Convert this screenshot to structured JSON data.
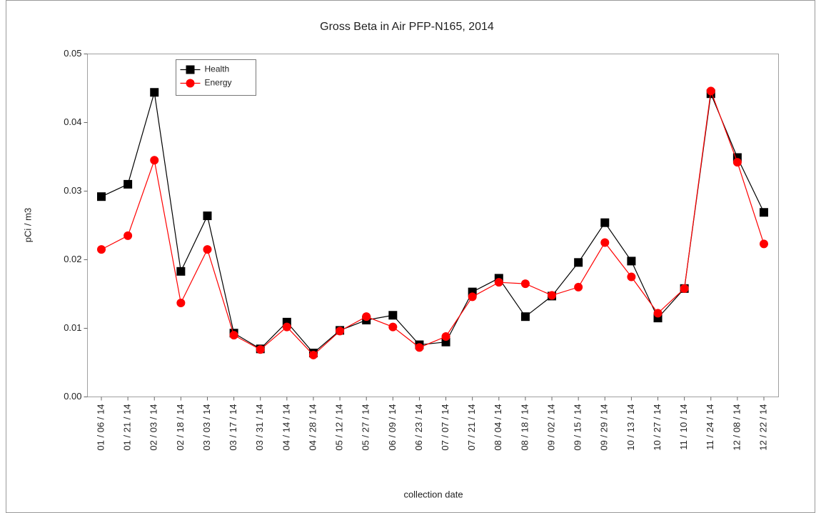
{
  "chart_data": {
    "type": "line",
    "title": "Gross Beta in Air PFP-N165, 2014",
    "x_label": "collection date",
    "y_label": "pCi / m3",
    "categories": [
      "01 / 06 / 14",
      "01 / 21 / 14",
      "02 / 03 / 14",
      "02 / 18 / 14",
      "03 / 03 / 14",
      "03 / 17 / 14",
      "03 / 31 / 14",
      "04 / 14 / 14",
      "04 / 28 / 14",
      "05 / 12 / 14",
      "05 / 27 / 14",
      "06 / 09 / 14",
      "06 / 23 / 14",
      "07 / 07 / 14",
      "07 / 21 / 14",
      "08 / 04 / 14",
      "08 / 18 / 14",
      "09 / 02 / 14",
      "09 / 15 / 14",
      "09 / 29 / 14",
      "10 / 13 / 14",
      "10 / 27 / 14",
      "11 / 10 / 14",
      "11 / 24 / 14",
      "12 / 08 / 14",
      "12 / 22 / 14"
    ],
    "series": [
      {
        "name": "Health",
        "color": "#000000",
        "marker": "square",
        "values": [
          0.0292,
          0.031,
          0.0444,
          0.0183,
          0.0264,
          0.0093,
          0.007,
          0.0109,
          0.0064,
          0.0097,
          0.0112,
          0.0119,
          0.0076,
          0.008,
          0.0153,
          0.0173,
          0.0117,
          0.0147,
          0.0196,
          0.0254,
          0.0198,
          0.0115,
          0.0158,
          0.0442,
          0.0349,
          0.0269
        ]
      },
      {
        "name": "Energy",
        "color": "#ff0000",
        "marker": "circle",
        "values": [
          0.0215,
          0.0235,
          0.0345,
          0.0137,
          0.0215,
          0.009,
          0.0069,
          0.0102,
          0.0061,
          0.0096,
          0.0117,
          0.0102,
          0.0072,
          0.0088,
          0.0146,
          0.0167,
          0.0165,
          0.0148,
          0.016,
          0.0225,
          0.0175,
          0.0122,
          0.0158,
          0.0446,
          0.0342,
          0.0223
        ]
      }
    ],
    "ylim": [
      0,
      0.05
    ],
    "yticks": [
      {
        "value": 0,
        "label": "0.00"
      },
      0.01,
      0.02,
      0.03,
      0.04,
      0.05
    ],
    "grid": false,
    "legend": "upper left"
  }
}
